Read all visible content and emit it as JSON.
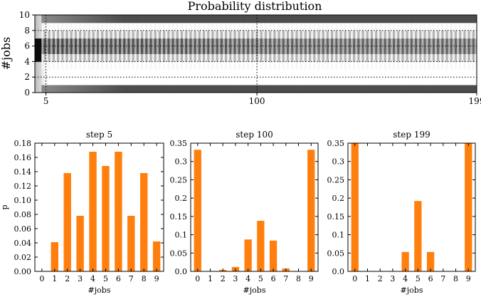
{
  "chart_data": [
    {
      "type": "heatmap",
      "title": "Probability distribution",
      "xlabel": "",
      "ylabel": "#jobs",
      "xlim": [
        0,
        199
      ],
      "ylim": [
        0,
        10
      ],
      "xticks": [
        "5",
        "100",
        "199"
      ],
      "xtick_values": [
        5,
        100,
        199
      ],
      "yticks": [
        "0",
        "2",
        "4",
        "6",
        "8",
        "10"
      ],
      "ytick_values": [
        0,
        2,
        4,
        6,
        8,
        10
      ],
      "grid": "dotted",
      "colormap": "grayscale (white = 0, black = high)"
    },
    {
      "type": "bar",
      "title": "step 5",
      "xlabel": "#jobs",
      "ylabel": "p",
      "categories": [
        "0",
        "1",
        "2",
        "3",
        "4",
        "5",
        "6",
        "7",
        "8",
        "9"
      ],
      "values": [
        0.0,
        0.041,
        0.138,
        0.078,
        0.168,
        0.148,
        0.168,
        0.078,
        0.138,
        0.042
      ],
      "ylim": [
        0,
        0.18
      ],
      "yticks": [
        "0.00",
        "0.02",
        "0.04",
        "0.06",
        "0.08",
        "0.10",
        "0.12",
        "0.14",
        "0.16",
        "0.18"
      ],
      "color": "#ff7f0e"
    },
    {
      "type": "bar",
      "title": "step 100",
      "xlabel": "#jobs",
      "ylabel": "",
      "categories": [
        "0",
        "1",
        "2",
        "3",
        "4",
        "5",
        "6",
        "7",
        "8",
        "9"
      ],
      "values": [
        0.332,
        0.0,
        0.004,
        0.012,
        0.087,
        0.138,
        0.084,
        0.008,
        0.0,
        0.332
      ],
      "ylim": [
        0,
        0.35
      ],
      "yticks": [
        "0.0",
        "0.05",
        "0.1",
        "0.15",
        "0.2",
        "0.25",
        "0.3",
        "0.35"
      ],
      "color": "#ff7f0e"
    },
    {
      "type": "bar",
      "title": "step 199",
      "xlabel": "#jobs",
      "ylabel": "",
      "categories": [
        "0",
        "1",
        "2",
        "3",
        "4",
        "5",
        "6",
        "7",
        "8",
        "9"
      ],
      "values": [
        0.35,
        0.0,
        0.0,
        0.0,
        0.053,
        0.192,
        0.053,
        0.0,
        0.0,
        0.35
      ],
      "ylim": [
        0,
        0.35
      ],
      "yticks": [
        "0.0",
        "0.05",
        "0.1",
        "0.15",
        "0.2",
        "0.25",
        "0.3",
        "0.35"
      ],
      "color": "#ff7f0e"
    }
  ]
}
